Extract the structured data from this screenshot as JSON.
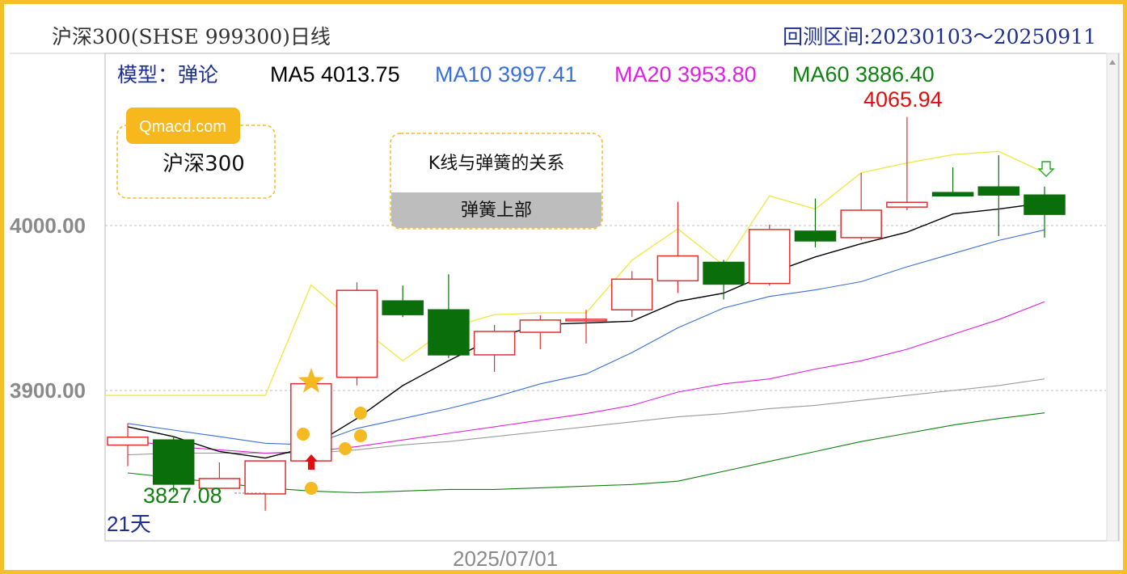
{
  "header": {
    "title": "沪深300(SHSE 999300)日线",
    "range": "回测区间:20230103～20250911"
  },
  "info": {
    "model_label": "模型：弹论",
    "ma5": "MA5 4013.75",
    "ma10": "MA10 3997.41",
    "ma20": "MA20 3953.80",
    "ma60": "MA60 3886.40",
    "colors": {
      "ma5": "#000000",
      "ma10": "#3a6fd8",
      "ma20": "#e020e0",
      "ma60": "#108010",
      "model": "#1e2f8e"
    }
  },
  "boxes": {
    "site": "Qmacd.com",
    "symbol": "沪深300",
    "relation_title": "K线与弹簧的关系",
    "relation_sub": "弹簧上部"
  },
  "chart_data": {
    "type": "candlestick",
    "y_ticks": [
      "4000.00",
      "3900.00"
    ],
    "ylim": [
      3809,
      4092
    ],
    "x_label": "2025/07/01",
    "period_label": "21天",
    "high_label": "4065.94",
    "low_label": "3827.08",
    "up_color": "#e03030",
    "down_color": "#0a6e0a",
    "candles": [
      {
        "o": 3866.9,
        "c": 3871.7,
        "h": 3880.0,
        "l": 3854.1
      },
      {
        "o": 3870.0,
        "c": 3843.2,
        "h": 3872.4,
        "l": 3838.3
      },
      {
        "o": 3840.7,
        "c": 3846.6,
        "h": 3856.4,
        "l": 3837.3
      },
      {
        "o": 3837.3,
        "c": 3857.3,
        "h": 3857.3,
        "l": 3827.1
      },
      {
        "o": 3857.3,
        "c": 3904.1,
        "h": 3904.1,
        "l": 3856.3
      },
      {
        "o": 3908.0,
        "c": 3960.7,
        "h": 3965.6,
        "l": 3903.1
      },
      {
        "o": 3954.3,
        "c": 3946.0,
        "h": 3963.6,
        "l": 3944.5
      },
      {
        "o": 3948.9,
        "c": 3921.6,
        "h": 3970.5,
        "l": 3919.7
      },
      {
        "o": 3921.6,
        "c": 3935.8,
        "h": 3939.7,
        "l": 3911.3
      },
      {
        "o": 3935.3,
        "c": 3942.7,
        "h": 3945.6,
        "l": 3925.0
      },
      {
        "o": 3942.2,
        "c": 3943.2,
        "h": 3948.9,
        "l": 3928.5
      },
      {
        "o": 3948.9,
        "c": 3967.5,
        "h": 3972.4,
        "l": 3944.5
      },
      {
        "o": 3966.5,
        "c": 3981.6,
        "h": 4014.4,
        "l": 3959.1
      },
      {
        "o": 3977.7,
        "c": 3964.5,
        "h": 3979.2,
        "l": 3955.2
      },
      {
        "o": 3964.9,
        "c": 3997.6,
        "h": 4000.5,
        "l": 3963.6
      },
      {
        "o": 3996.6,
        "c": 3990.7,
        "h": 4016.4,
        "l": 3986.8
      },
      {
        "o": 3992.7,
        "c": 4009.3,
        "h": 4031.9,
        "l": 3991.2
      },
      {
        "o": 4011.2,
        "c": 4014.1,
        "h": 4065.9,
        "l": 4009.3
      },
      {
        "o": 4020.0,
        "c": 4018.0,
        "h": 4035.3,
        "l": 4017.6
      },
      {
        "o": 4023.4,
        "c": 4018.5,
        "h": 4042.7,
        "l": 3993.7
      },
      {
        "o": 4018.5,
        "c": 4006.8,
        "h": 4023.6,
        "l": 3992.7
      }
    ],
    "series": [
      {
        "name": "MA5",
        "color": "#000000",
        "values": [
          3878,
          3872,
          3863,
          3859,
          3866,
          3883,
          3903,
          3918,
          3932,
          3940,
          3941,
          3942,
          3954,
          3959,
          3971,
          3981,
          3989,
          3996,
          4007,
          4010,
          4013.75
        ]
      },
      {
        "name": "MA10",
        "color": "#3a6fd8",
        "values": [
          3880,
          3876,
          3872,
          3868,
          3867,
          3877,
          3883,
          3889,
          3896,
          3904,
          3910,
          3923,
          3938,
          3950,
          3957,
          3961,
          3966,
          3975,
          3983,
          3991,
          3997.41
        ]
      },
      {
        "name": "MA20",
        "color": "#e020e0",
        "values": [
          3870,
          3866,
          3864,
          3862,
          3863,
          3866,
          3870,
          3874,
          3878,
          3882,
          3886,
          3891,
          3899,
          3904,
          3907,
          3913,
          3918,
          3925,
          3934,
          3943,
          3953.8
        ]
      },
      {
        "name": "MA60",
        "color": "#108010",
        "values": [
          3850,
          3847,
          3844,
          3841,
          3839,
          3838,
          3839,
          3840,
          3840,
          3841,
          3842,
          3843,
          3845,
          3851,
          3857,
          3863,
          3869,
          3874,
          3879,
          3883,
          3886.4
        ]
      },
      {
        "name": "",
        "color": "#9a9a9a",
        "values": [
          3861,
          3862,
          3862,
          3862,
          3862,
          3864,
          3867,
          3869,
          3872,
          3875,
          3878,
          3881,
          3884,
          3886,
          3889,
          3891,
          3894,
          3897,
          3900,
          3903,
          3907
        ]
      }
    ],
    "spring_upper": [
      3897,
      3897,
      3897,
      3897,
      3897,
      3964,
      3940,
      3918,
      3938,
      3946,
      3947,
      3947,
      3979,
      3998,
      3976,
      4018,
      4010,
      4032,
      4038,
      4043,
      4045,
      4032
    ],
    "spring_color": "#f0e84a"
  }
}
